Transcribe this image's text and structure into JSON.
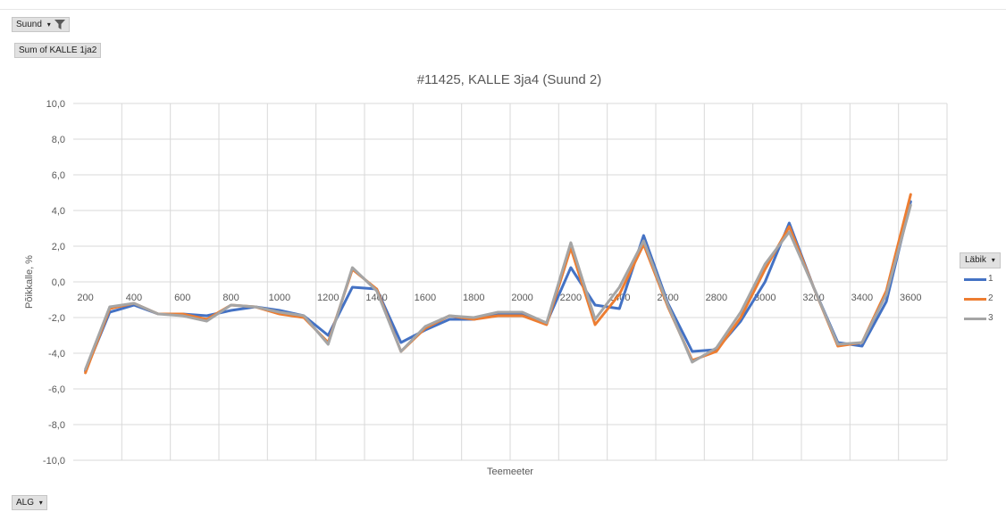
{
  "pivot": {
    "filter_label": "Suund",
    "value_label": "Sum of KALLE 1ja2",
    "axis_label": "ALG",
    "legend_label": "Läbik"
  },
  "colors": {
    "series_1": "#4472C4",
    "series_2": "#ED7D31",
    "series_3": "#A5A5A5"
  },
  "chart_data": {
    "type": "line",
    "title": "#11425, KALLE 3ja4 (Suund 2)",
    "xlabel": "Teemeeter",
    "ylabel": "Põikkalle, %",
    "ylim": [
      -10,
      10
    ],
    "ytick_step": 2,
    "y_ticks": [
      "10,0",
      "8,0",
      "6,0",
      "4,0",
      "2,0",
      "0,0",
      "-2,0",
      "-4,0",
      "-6,0",
      "-8,0",
      "-10,0"
    ],
    "categories": [
      "200",
      "300",
      "400",
      "500",
      "600",
      "700",
      "800",
      "900",
      "1000",
      "1100",
      "1200",
      "1300",
      "1400",
      "1500",
      "1600",
      "1700",
      "1800",
      "1900",
      "2000",
      "2100",
      "2200",
      "2300",
      "2400",
      "2500",
      "2600",
      "2700",
      "2800",
      "2900",
      "3000",
      "3100",
      "3200",
      "3300",
      "3400",
      "3500",
      "3600"
    ],
    "x_tick_labels": [
      "200",
      "400",
      "600",
      "800",
      "1000",
      "1200",
      "1400",
      "1600",
      "1800",
      "2000",
      "2200",
      "2400",
      "2600",
      "2800",
      "3000",
      "3200",
      "3400",
      "3600"
    ],
    "legend_position": "right",
    "grid": true,
    "series": [
      {
        "name": "1",
        "values": [
          -5.0,
          -1.7,
          -1.3,
          -1.8,
          -1.8,
          -1.9,
          -1.6,
          -1.4,
          -1.6,
          -1.9,
          -3.0,
          -0.3,
          -0.4,
          -3.4,
          -2.7,
          -2.1,
          -2.1,
          -1.8,
          -1.8,
          -2.3,
          0.8,
          -1.3,
          -1.5,
          2.6,
          -1.2,
          -3.9,
          -3.8,
          -2.2,
          0.0,
          3.3,
          -0.3,
          -3.4,
          -3.6,
          -1.1,
          4.5
        ]
      },
      {
        "name": "2",
        "values": [
          -5.1,
          -1.5,
          -1.2,
          -1.8,
          -1.8,
          -2.1,
          -1.3,
          -1.4,
          -1.8,
          -2.0,
          -3.4,
          0.7,
          -0.4,
          -3.9,
          -2.6,
          -1.9,
          -2.1,
          -1.9,
          -1.9,
          -2.4,
          1.9,
          -2.4,
          -0.7,
          2.1,
          -1.4,
          -4.4,
          -3.9,
          -2.0,
          0.7,
          3.1,
          -0.3,
          -3.6,
          -3.4,
          -0.5,
          4.9
        ]
      },
      {
        "name": "3",
        "values": [
          -4.9,
          -1.4,
          -1.2,
          -1.8,
          -1.9,
          -2.2,
          -1.3,
          -1.4,
          -1.7,
          -1.9,
          -3.5,
          0.8,
          -0.5,
          -3.9,
          -2.5,
          -1.9,
          -2.0,
          -1.7,
          -1.7,
          -2.3,
          2.2,
          -2.1,
          -0.3,
          2.3,
          -1.3,
          -4.5,
          -3.7,
          -1.7,
          1.0,
          2.8,
          -0.3,
          -3.5,
          -3.4,
          -0.7,
          4.3
        ]
      }
    ]
  }
}
